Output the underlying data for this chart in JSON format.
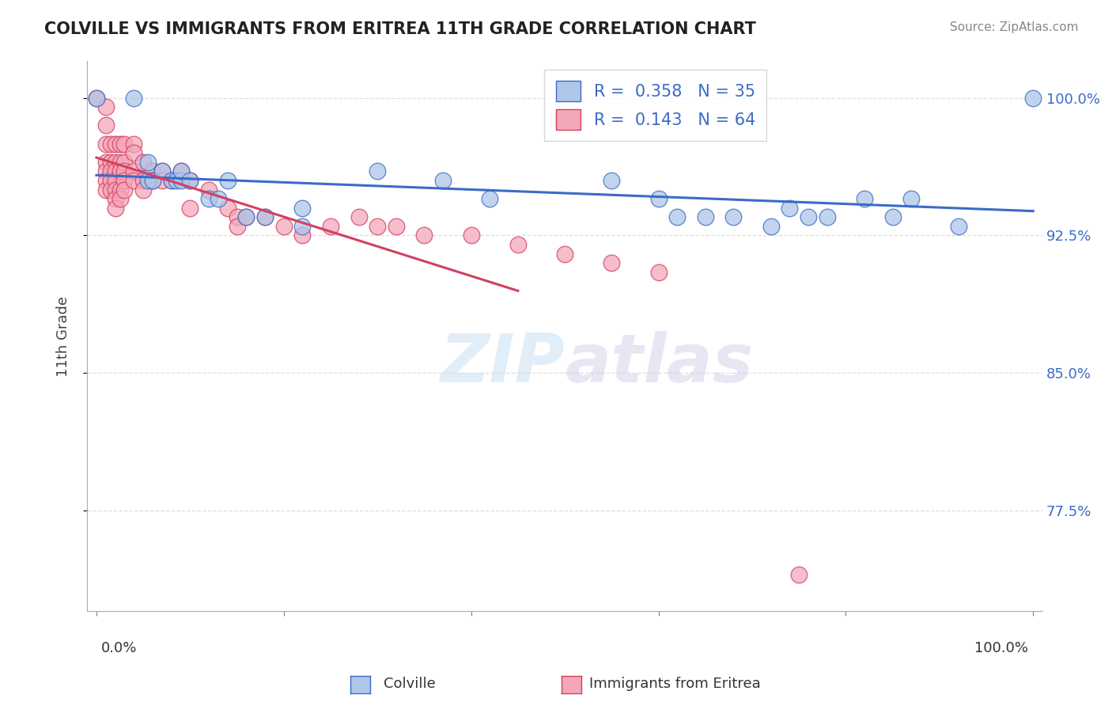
{
  "title": "COLVILLE VS IMMIGRANTS FROM ERITREA 11TH GRADE CORRELATION CHART",
  "source": "Source: ZipAtlas.com",
  "ylabel": "11th Grade",
  "watermark_zip": "ZIP",
  "watermark_atlas": "atlas",
  "xlim": [
    0.0,
    1.0
  ],
  "ylim": [
    0.72,
    1.02
  ],
  "yticks": [
    0.775,
    0.85,
    0.925,
    1.0
  ],
  "ytick_labels": [
    "77.5%",
    "85.0%",
    "92.5%",
    "100.0%"
  ],
  "colville_R": 0.358,
  "colville_N": 35,
  "eritrea_R": 0.143,
  "eritrea_N": 64,
  "colville_color": "#aec6e8",
  "eritrea_color": "#f4a7b9",
  "colville_line_color": "#3a6bc8",
  "eritrea_line_color": "#d44060",
  "colville_scatter": [
    [
      0.0,
      1.0
    ],
    [
      0.04,
      1.0
    ],
    [
      0.055,
      0.965
    ],
    [
      0.055,
      0.955
    ],
    [
      0.06,
      0.955
    ],
    [
      0.07,
      0.96
    ],
    [
      0.08,
      0.955
    ],
    [
      0.085,
      0.955
    ],
    [
      0.09,
      0.955
    ],
    [
      0.09,
      0.96
    ],
    [
      0.1,
      0.955
    ],
    [
      0.12,
      0.945
    ],
    [
      0.13,
      0.945
    ],
    [
      0.14,
      0.955
    ],
    [
      0.16,
      0.935
    ],
    [
      0.18,
      0.935
    ],
    [
      0.22,
      0.94
    ],
    [
      0.22,
      0.93
    ],
    [
      0.3,
      0.96
    ],
    [
      0.37,
      0.955
    ],
    [
      0.42,
      0.945
    ],
    [
      0.55,
      0.955
    ],
    [
      0.6,
      0.945
    ],
    [
      0.62,
      0.935
    ],
    [
      0.65,
      0.935
    ],
    [
      0.68,
      0.935
    ],
    [
      0.72,
      0.93
    ],
    [
      0.74,
      0.94
    ],
    [
      0.76,
      0.935
    ],
    [
      0.78,
      0.935
    ],
    [
      0.82,
      0.945
    ],
    [
      0.85,
      0.935
    ],
    [
      0.87,
      0.945
    ],
    [
      0.92,
      0.93
    ],
    [
      1.0,
      1.0
    ]
  ],
  "eritrea_scatter": [
    [
      0.0,
      1.0
    ],
    [
      0.01,
      0.995
    ],
    [
      0.01,
      0.985
    ],
    [
      0.01,
      0.975
    ],
    [
      0.01,
      0.965
    ],
    [
      0.01,
      0.96
    ],
    [
      0.01,
      0.955
    ],
    [
      0.01,
      0.95
    ],
    [
      0.015,
      0.975
    ],
    [
      0.015,
      0.965
    ],
    [
      0.015,
      0.96
    ],
    [
      0.015,
      0.955
    ],
    [
      0.015,
      0.95
    ],
    [
      0.02,
      0.975
    ],
    [
      0.02,
      0.965
    ],
    [
      0.02,
      0.96
    ],
    [
      0.02,
      0.955
    ],
    [
      0.02,
      0.95
    ],
    [
      0.02,
      0.945
    ],
    [
      0.02,
      0.94
    ],
    [
      0.025,
      0.975
    ],
    [
      0.025,
      0.965
    ],
    [
      0.025,
      0.96
    ],
    [
      0.025,
      0.95
    ],
    [
      0.025,
      0.945
    ],
    [
      0.03,
      0.975
    ],
    [
      0.03,
      0.965
    ],
    [
      0.03,
      0.96
    ],
    [
      0.03,
      0.955
    ],
    [
      0.03,
      0.95
    ],
    [
      0.04,
      0.975
    ],
    [
      0.04,
      0.97
    ],
    [
      0.04,
      0.96
    ],
    [
      0.04,
      0.955
    ],
    [
      0.05,
      0.965
    ],
    [
      0.05,
      0.955
    ],
    [
      0.05,
      0.95
    ],
    [
      0.06,
      0.96
    ],
    [
      0.06,
      0.955
    ],
    [
      0.07,
      0.96
    ],
    [
      0.07,
      0.955
    ],
    [
      0.08,
      0.955
    ],
    [
      0.09,
      0.96
    ],
    [
      0.1,
      0.955
    ],
    [
      0.1,
      0.94
    ],
    [
      0.12,
      0.95
    ],
    [
      0.14,
      0.94
    ],
    [
      0.15,
      0.935
    ],
    [
      0.15,
      0.93
    ],
    [
      0.16,
      0.935
    ],
    [
      0.18,
      0.935
    ],
    [
      0.2,
      0.93
    ],
    [
      0.22,
      0.925
    ],
    [
      0.25,
      0.93
    ],
    [
      0.28,
      0.935
    ],
    [
      0.3,
      0.93
    ],
    [
      0.32,
      0.93
    ],
    [
      0.35,
      0.925
    ],
    [
      0.4,
      0.925
    ],
    [
      0.45,
      0.92
    ],
    [
      0.5,
      0.915
    ],
    [
      0.55,
      0.91
    ],
    [
      0.6,
      0.905
    ],
    [
      0.75,
      0.74
    ]
  ],
  "background_color": "#ffffff",
  "grid_color": "#dddddd",
  "title_color": "#222222",
  "axis_label_color": "#444444",
  "right_tick_color": "#3a6bc8"
}
